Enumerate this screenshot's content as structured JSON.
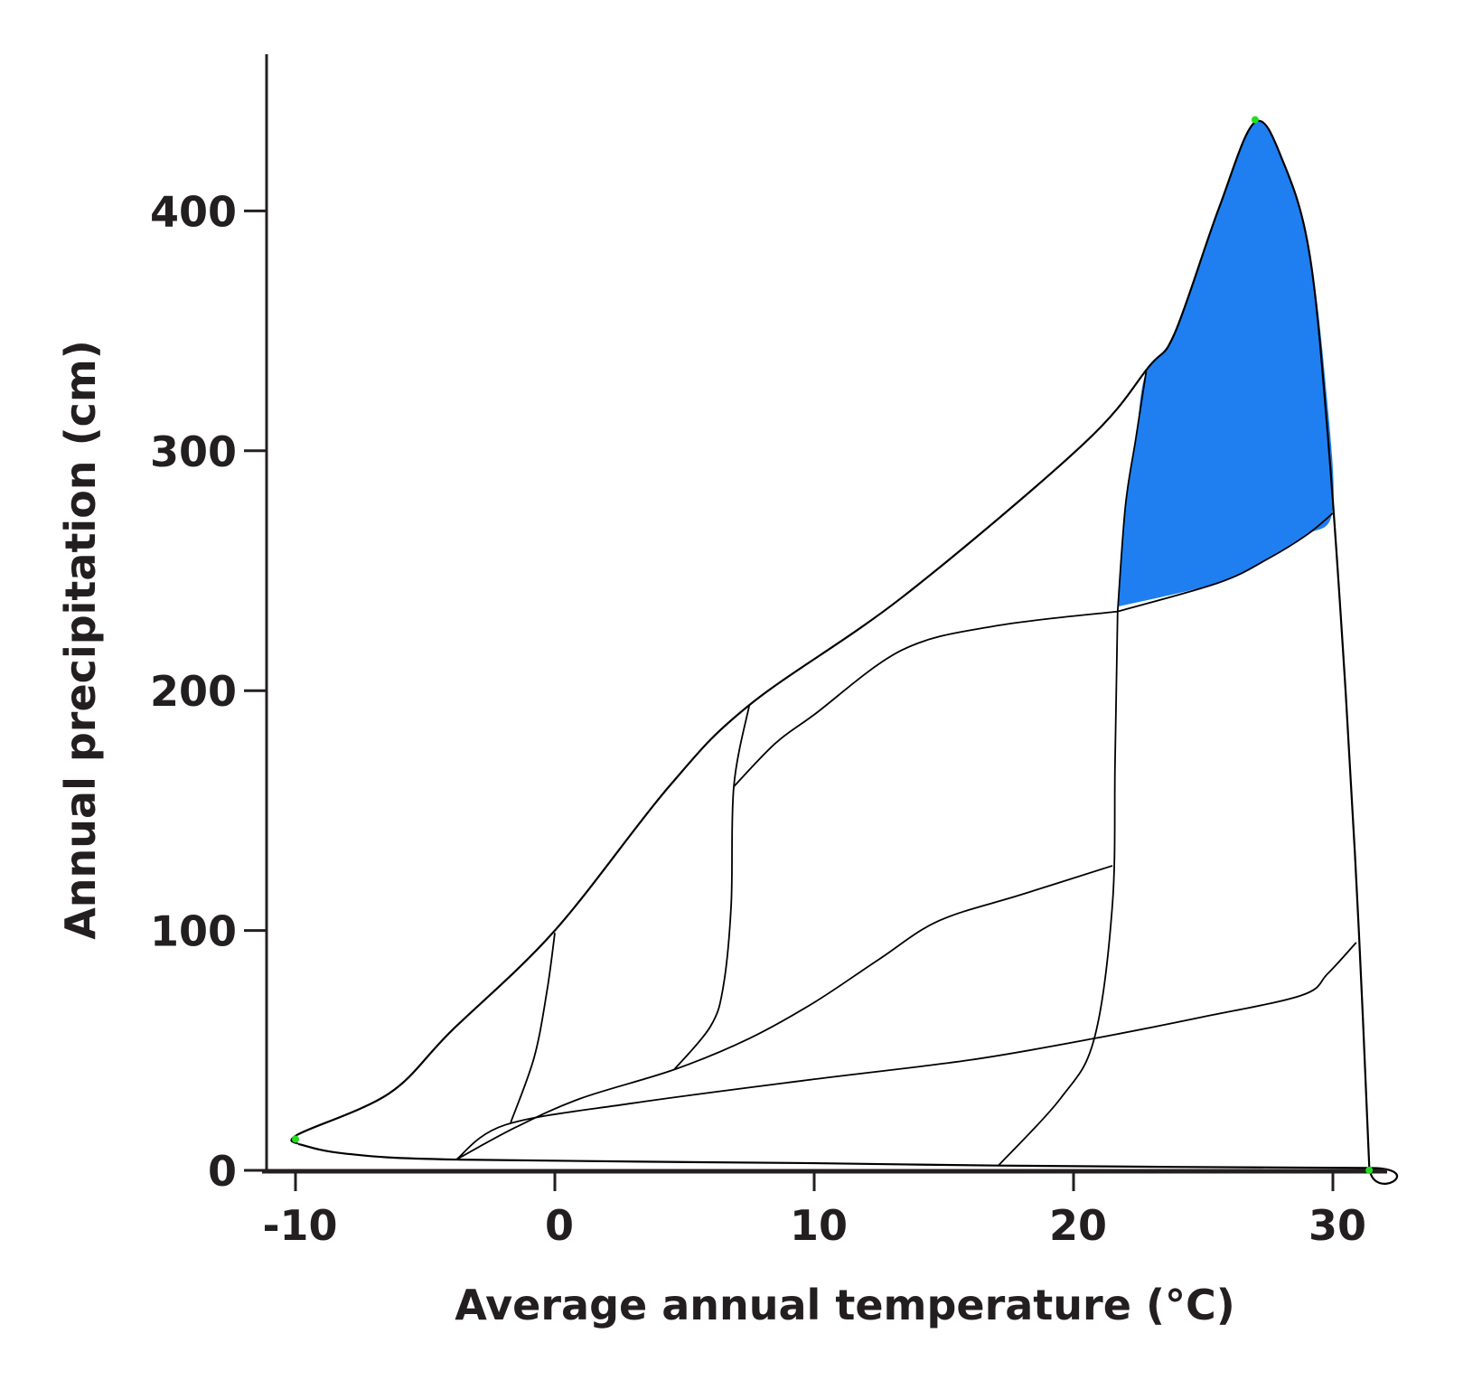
{
  "chart_data": {
    "type": "line",
    "title": "",
    "xlabel": "Average annual temperature (°C)",
    "ylabel": "Annual precipitation (cm)",
    "xlim": [
      -11,
      32
    ],
    "ylim": [
      0,
      470
    ],
    "xticks": [
      -10,
      0,
      10,
      20,
      30
    ],
    "yticks": [
      0,
      100,
      200,
      300,
      400
    ],
    "colors": {
      "highlight": "#1f7ff0",
      "line": "#000000",
      "axis": "#231f20",
      "marker": "#22dd22"
    },
    "boundaries": [
      {
        "name": "outer-boundary",
        "points": [
          [
            -9.9,
            11
          ],
          [
            -8.1,
            7
          ],
          [
            -3.8,
            4.5
          ],
          [
            10,
            3
          ],
          [
            17.1,
            2
          ],
          [
            31.4,
            1
          ],
          [
            31.4,
            2
          ],
          [
            31,
            100
          ],
          [
            30.5,
            198
          ],
          [
            29.8,
            307
          ],
          [
            29.1,
            382
          ],
          [
            28.1,
            420
          ],
          [
            27,
            437
          ],
          [
            25.6,
            401
          ],
          [
            23.9,
            349
          ],
          [
            22.9,
            335
          ],
          [
            20.4,
            303
          ],
          [
            13.4,
            239
          ],
          [
            7.5,
            194
          ],
          [
            4.4,
            160
          ],
          [
            0,
            100
          ],
          [
            -4,
            58
          ],
          [
            -6.4,
            32
          ],
          [
            -9.9,
            15
          ],
          [
            -9.9,
            11
          ]
        ]
      },
      {
        "name": "divider-1",
        "points": [
          [
            0,
            99
          ],
          [
            -0.3,
            75
          ],
          [
            -0.8,
            47
          ],
          [
            -1.7,
            20
          ]
        ]
      },
      {
        "name": "divider-2",
        "points": [
          [
            -3.8,
            4.5
          ],
          [
            -1.5,
            18
          ],
          [
            1,
            30
          ],
          [
            4.6,
            42
          ],
          [
            7.5,
            55
          ],
          [
            10,
            70
          ],
          [
            12.5,
            88
          ],
          [
            14.8,
            104
          ],
          [
            18,
            115
          ],
          [
            21.5,
            127
          ]
        ]
      },
      {
        "name": "divider-3",
        "points": [
          [
            4.6,
            42
          ],
          [
            6,
            60
          ],
          [
            6.5,
            77
          ],
          [
            6.8,
            111
          ],
          [
            6.9,
            160
          ],
          [
            7.5,
            194
          ]
        ]
      },
      {
        "name": "divider-4",
        "points": [
          [
            6.9,
            160
          ],
          [
            8.5,
            178
          ],
          [
            10,
            190
          ],
          [
            13.4,
            217
          ],
          [
            17,
            227
          ],
          [
            21.7,
            233
          ]
        ]
      },
      {
        "name": "divider-5",
        "points": [
          [
            21.7,
            233
          ],
          [
            21.6,
            170
          ],
          [
            21.5,
            111
          ],
          [
            20.8,
            55
          ],
          [
            19.5,
            30
          ],
          [
            17.1,
            2
          ]
        ]
      },
      {
        "name": "divider-6",
        "points": [
          [
            -3.8,
            4.5
          ],
          [
            -1.9,
            19
          ],
          [
            3,
            28
          ],
          [
            10,
            38
          ],
          [
            16,
            46
          ],
          [
            20.8,
            55
          ],
          [
            25,
            64
          ],
          [
            28.8,
            73
          ],
          [
            29.8,
            82
          ],
          [
            30.9,
            95
          ]
        ]
      },
      {
        "name": "divider-7",
        "points": [
          [
            21.7,
            233
          ],
          [
            25.6,
            245
          ],
          [
            27.5,
            255
          ],
          [
            29,
            265
          ],
          [
            30,
            274
          ]
        ]
      },
      {
        "name": "divider-8",
        "points": [
          [
            21.7,
            233
          ],
          [
            22,
            277
          ],
          [
            22.4,
            305
          ],
          [
            22.8,
            333
          ]
        ]
      }
    ],
    "highlighted_region": {
      "name": "highlighted-biome",
      "points": [
        [
          21.7,
          235
        ],
        [
          22,
          277
        ],
        [
          22.4,
          305
        ],
        [
          22.8,
          333
        ],
        [
          23.9,
          349
        ],
        [
          25.6,
          401
        ],
        [
          27,
          437
        ],
        [
          28.1,
          420
        ],
        [
          29.1,
          382
        ],
        [
          29.7,
          330
        ],
        [
          30,
          276
        ],
        [
          29,
          265
        ],
        [
          27.5,
          255
        ],
        [
          25.6,
          245
        ],
        [
          21.7,
          235
        ]
      ]
    },
    "markers": [
      [
        -10,
        13
      ],
      [
        27,
        438
      ],
      [
        31.4,
        0
      ]
    ]
  }
}
